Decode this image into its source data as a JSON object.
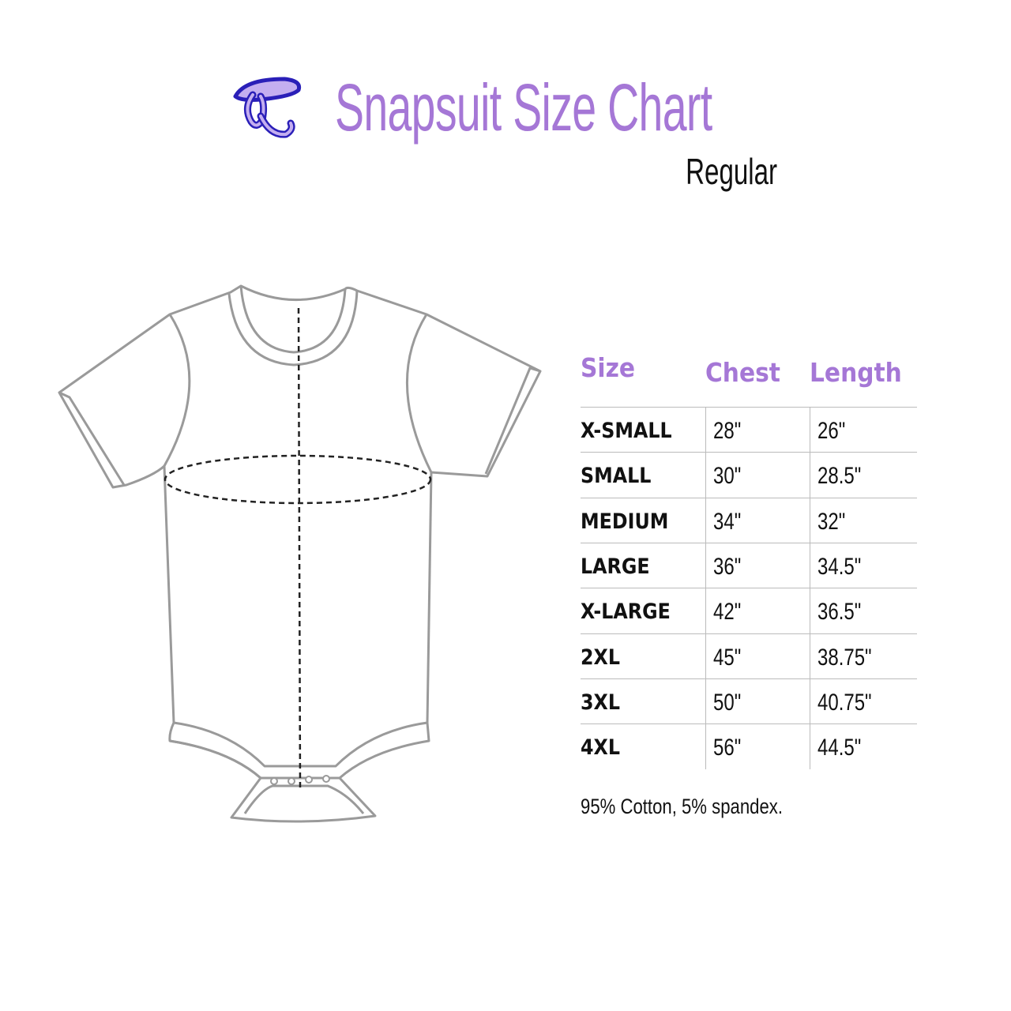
{
  "header": {
    "logo_text": "CK",
    "title": "Snapsuit Size Chart",
    "subtitle": "Regular"
  },
  "colors": {
    "accent": "#a577d6",
    "logo_outline": "#2a1fb8",
    "garment_stroke": "#9a9a9a"
  },
  "illustration": {
    "name": "snapsuit-outline",
    "measures": [
      "chest",
      "length"
    ]
  },
  "table": {
    "headers": [
      "Size",
      "Chest",
      "Length"
    ],
    "rows": [
      [
        "X-SMALL",
        "28\"",
        "26\""
      ],
      [
        "SMALL",
        "30\"",
        "28.5\""
      ],
      [
        "MEDIUM",
        "34\"",
        "32\""
      ],
      [
        "LARGE",
        "36\"",
        "34.5\""
      ],
      [
        "X-LARGE",
        "42\"",
        "36.5\""
      ],
      [
        "2XL",
        "45\"",
        "38.75\""
      ],
      [
        "3XL",
        "50\"",
        "40.75\""
      ],
      [
        "4XL",
        "56\"",
        "44.5\""
      ]
    ]
  },
  "footnote": "95% Cotton, 5% spandex."
}
